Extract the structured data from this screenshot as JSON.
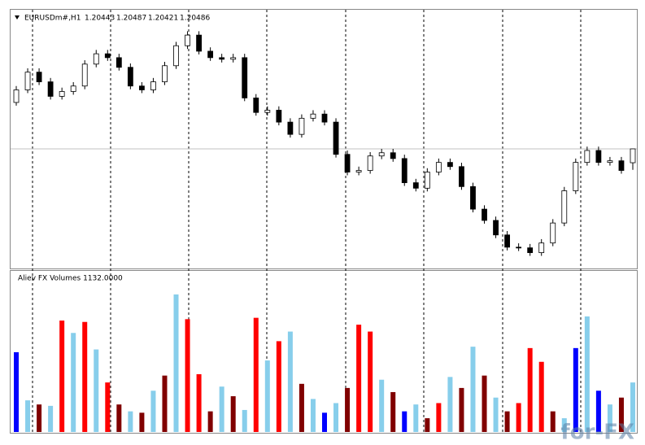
{
  "chart_data": [
    {
      "type": "candlestick",
      "title": "EURUSDm#,H1",
      "open": [
        1.2063,
        1.20669,
        1.20724,
        1.20694,
        1.20649,
        1.20664,
        1.20681,
        1.20749,
        1.20781,
        1.20769,
        1.20739,
        1.20681,
        1.20669,
        1.20694,
        1.20744,
        1.20806,
        1.20839,
        1.20789,
        1.20769,
        1.20764,
        1.20769,
        1.20644,
        1.20599,
        1.20606,
        1.20569,
        1.20531,
        1.20581,
        1.20594,
        1.20569,
        1.20469,
        1.20414,
        1.20419,
        1.20464,
        1.20474,
        1.20456,
        1.20381,
        1.20364,
        1.20414,
        1.20444,
        1.20431,
        1.20369,
        1.20299,
        1.20264,
        1.20219,
        1.20181,
        1.20179,
        1.20164,
        1.20194,
        1.20256,
        1.20356,
        1.20444,
        1.20481,
        1.20444,
        1.20449,
        1.20443
      ],
      "high": [
        1.20681,
        1.20736,
        1.20736,
        1.20706,
        1.20676,
        1.20693,
        1.20761,
        1.20793,
        1.20793,
        1.20781,
        1.20751,
        1.20693,
        1.20706,
        1.20756,
        1.20818,
        1.20851,
        1.20851,
        1.20801,
        1.20781,
        1.20781,
        1.20781,
        1.20656,
        1.20618,
        1.20618,
        1.20581,
        1.20593,
        1.20606,
        1.20606,
        1.20581,
        1.20481,
        1.20431,
        1.20476,
        1.20486,
        1.20486,
        1.20468,
        1.20393,
        1.20426,
        1.20456,
        1.20456,
        1.20443,
        1.20381,
        1.20311,
        1.20276,
        1.20231,
        1.20193,
        1.20191,
        1.20206,
        1.20268,
        1.20368,
        1.20456,
        1.20493,
        1.20493,
        1.20461,
        1.20461,
        1.20487
      ],
      "low": [
        1.2062,
        1.20659,
        1.20684,
        1.20639,
        1.20639,
        1.20654,
        1.20671,
        1.20739,
        1.20759,
        1.20729,
        1.20671,
        1.20659,
        1.20659,
        1.20684,
        1.20734,
        1.20796,
        1.20779,
        1.20759,
        1.20754,
        1.20754,
        1.20634,
        1.20589,
        1.20589,
        1.20559,
        1.20521,
        1.20521,
        1.20571,
        1.20559,
        1.20459,
        1.20404,
        1.20404,
        1.20409,
        1.20454,
        1.20446,
        1.20371,
        1.20354,
        1.20354,
        1.20404,
        1.20421,
        1.20359,
        1.20289,
        1.20254,
        1.20209,
        1.20171,
        1.20169,
        1.20154,
        1.20154,
        1.20184,
        1.20246,
        1.20346,
        1.20434,
        1.20434,
        1.20434,
        1.20409,
        1.20421
      ],
      "close": [
        1.20669,
        1.20724,
        1.20694,
        1.20649,
        1.20664,
        1.20681,
        1.20749,
        1.20781,
        1.20769,
        1.20739,
        1.20681,
        1.20669,
        1.20694,
        1.20744,
        1.20806,
        1.20839,
        1.20789,
        1.20769,
        1.20764,
        1.20769,
        1.20644,
        1.20599,
        1.20606,
        1.20569,
        1.20531,
        1.20581,
        1.20594,
        1.20569,
        1.20469,
        1.20414,
        1.20419,
        1.20464,
        1.20474,
        1.20456,
        1.20381,
        1.20364,
        1.20414,
        1.20444,
        1.20431,
        1.20369,
        1.20299,
        1.20264,
        1.20219,
        1.20181,
        1.20179,
        1.20164,
        1.20194,
        1.20256,
        1.20356,
        1.20444,
        1.20481,
        1.20444,
        1.20449,
        1.20419,
        1.20486
      ],
      "ylim": [
        1.2012,
        1.2091
      ]
    },
    {
      "type": "bar",
      "title": "Aliev FX Volumes 1132.0000",
      "values": [
        5800,
        2300,
        2000,
        1900,
        8100,
        7200,
        8000,
        6000,
        3600,
        2000,
        1500,
        1400,
        3000,
        4100,
        10000,
        8200,
        4200,
        1500,
        3300,
        2600,
        1600,
        8300,
        5200,
        6600,
        7300,
        3500,
        2400,
        1400,
        2100,
        3200,
        7800,
        7300,
        3800,
        2900,
        1500,
        2000,
        1000,
        2100,
        4000,
        3200,
        6200,
        4100,
        2500,
        1500,
        2100,
        6100,
        5100,
        1500,
        1000,
        6100,
        8400,
        3000,
        2000,
        2500,
        3600
      ],
      "colors": [
        "#0000ff",
        "#87ceeb",
        "#800000",
        "#87ceeb",
        "#ff0000",
        "#87ceeb",
        "#ff0000",
        "#87ceeb",
        "#ff0000",
        "#800000",
        "#87ceeb",
        "#800000",
        "#87ceeb",
        "#800000",
        "#87ceeb",
        "#ff0000",
        "#ff0000",
        "#800000",
        "#87ceeb",
        "#800000",
        "#87ceeb",
        "#ff0000",
        "#87ceeb",
        "#ff0000",
        "#87ceeb",
        "#800000",
        "#87ceeb",
        "#0000ff",
        "#87ceeb",
        "#800000",
        "#ff0000",
        "#ff0000",
        "#87ceeb",
        "#800000",
        "#0000ff",
        "#87ceeb",
        "#800000",
        "#ff0000",
        "#87ceeb",
        "#800000",
        "#87ceeb",
        "#800000",
        "#87ceeb",
        "#800000",
        "#ff0000",
        "#ff0000",
        "#ff0000",
        "#800000",
        "#87ceeb",
        "#0000ff",
        "#87ceeb",
        "#0000ff",
        "#87ceeb",
        "#800000",
        "#87ceeb"
      ],
      "ylim": [
        0,
        11000
      ]
    }
  ],
  "watermark": "for-FX"
}
